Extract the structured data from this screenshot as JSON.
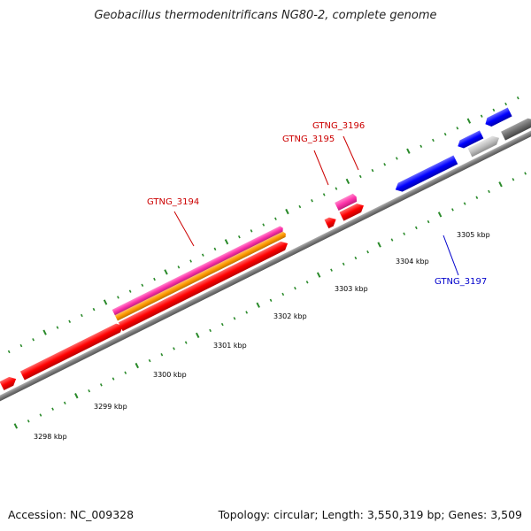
{
  "title": "Geobacillus thermodenitrificans NG80-2, complete genome",
  "footer": {
    "accession": "Accession: NC_009328",
    "summary": "Topology: circular; Length: 3,550,319 bp; Genes: 3,509"
  },
  "scale_labels": [
    "3298 kbp",
    "3299 kbp",
    "3300 kbp",
    "3301 kbp",
    "3302 kbp",
    "3303 kbp",
    "3304 kbp",
    "3305 kbp"
  ],
  "gene_labels": [
    {
      "text": "GTNG_3194",
      "color": "#cc0000"
    },
    {
      "text": "GTNG_3195",
      "color": "#cc0000"
    },
    {
      "text": "GTNG_3196",
      "color": "#cc0000"
    },
    {
      "text": "GTNG_3197",
      "color": "#0000cc"
    }
  ],
  "colors": {
    "forward_gene": "#ff0000",
    "reverse_gene": "#0000ff",
    "pink_feature": "#ff33aa",
    "orange_feature": "#ff9900",
    "grey_feature": "#b8b8b8",
    "dark_feature": "#707070",
    "backbone": "#888888",
    "tick": "#2a8a2a"
  }
}
